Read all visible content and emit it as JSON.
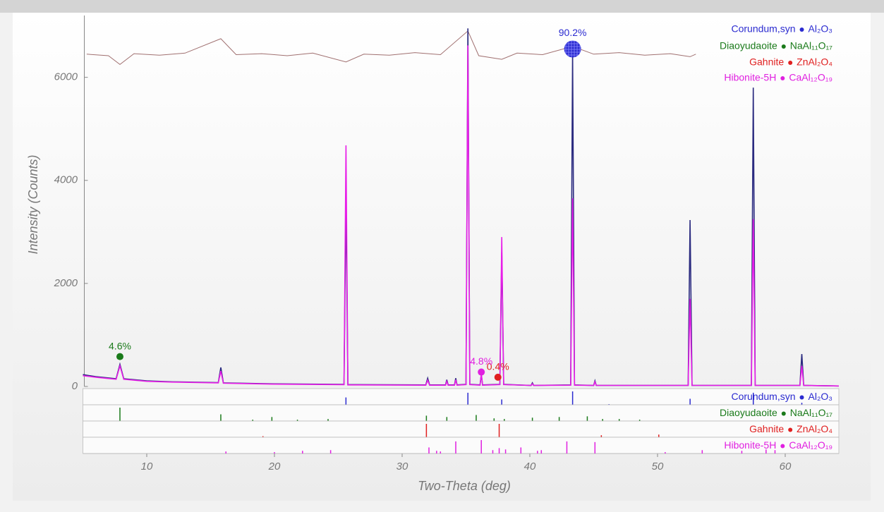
{
  "chart_data": {
    "type": "xrd",
    "xlabel": "Two-Theta (deg)",
    "ylabel": "Intensity (Counts)",
    "xlim": [
      5,
      64.2
    ],
    "ylim": [
      0,
      7200
    ],
    "xticks": [
      10,
      20,
      30,
      40,
      50,
      60
    ],
    "yticks": [
      0,
      2000,
      4000,
      6000
    ],
    "x": [
      5,
      6,
      7.6,
      7.9,
      8.2,
      10,
      12,
      15.6,
      15.8,
      16.0,
      20,
      25.45,
      25.6,
      25.75,
      31.85,
      32.0,
      32.15,
      33.4,
      33.5,
      33.6,
      34.1,
      34.2,
      34.3,
      35.0,
      35.15,
      35.3,
      36.1,
      36.2,
      36.3,
      37.65,
      37.8,
      37.95,
      40.1,
      40.2,
      40.3,
      43.2,
      43.35,
      43.5,
      45.0,
      45.1,
      45.2,
      52.4,
      52.55,
      52.7,
      57.35,
      57.5,
      57.65,
      61.15,
      61.3,
      61.45,
      64.2
    ],
    "series": [
      {
        "color": "#2b2b80",
        "values": [
          230,
          190,
          150,
          430,
          150,
          110,
          90,
          75,
          370,
          70,
          50,
          40,
          3650,
          35,
          30,
          160,
          30,
          30,
          130,
          30,
          30,
          160,
          30,
          40,
          6950,
          40,
          30,
          230,
          30,
          40,
          2600,
          40,
          20,
          70,
          20,
          30,
          6500,
          30,
          20,
          110,
          20,
          20,
          3230,
          20,
          20,
          5800,
          20,
          20,
          630,
          20,
          10
        ]
      },
      {
        "color": "#e81ee8",
        "values": [
          210,
          180,
          140,
          400,
          140,
          100,
          85,
          70,
          300,
          65,
          45,
          35,
          4680,
          30,
          25,
          120,
          25,
          25,
          100,
          25,
          25,
          130,
          25,
          35,
          6620,
          35,
          25,
          250,
          25,
          35,
          2900,
          35,
          20,
          50,
          20,
          25,
          3650,
          25,
          20,
          90,
          20,
          20,
          1700,
          20,
          20,
          3250,
          20,
          20,
          400,
          20,
          10
        ]
      }
    ],
    "difference": {
      "color": "#a07070",
      "x": [
        5.3,
        7,
        7.9,
        9,
        11,
        13,
        15.8,
        17,
        19,
        21,
        23,
        25.6,
        27,
        29,
        31,
        33,
        35.15,
        36,
        37.8,
        39,
        41,
        43.35,
        45,
        47,
        49,
        51,
        52.55,
        53
      ],
      "values": [
        6450,
        6420,
        6250,
        6460,
        6430,
        6470,
        6750,
        6440,
        6460,
        6420,
        6470,
        6300,
        6450,
        6430,
        6480,
        6440,
        6900,
        6420,
        6350,
        6470,
        6440,
        6600,
        6450,
        6480,
        6430,
        6460,
        6400,
        6450
      ]
    },
    "phases": [
      {
        "name": "Corundum,syn",
        "formula": "Al₂O₃",
        "color": "#2b2bd0",
        "fraction_label": "90.2%",
        "marker_x": 43.35,
        "marker_y": 6550,
        "sticks_x": [
          25.6,
          35.15,
          37.8,
          43.35,
          46.2,
          52.55,
          57.5,
          61.3
        ],
        "sticks_h": [
          55,
          90,
          40,
          100,
          5,
          45,
          90,
          15
        ]
      },
      {
        "name": "Diaoyudaoite",
        "formula": "NaAl₁₁O₁₇",
        "color": "#1a7a1a",
        "fraction_label": "4.6%",
        "marker_x": 7.9,
        "marker_y": 580,
        "sticks_x": [
          7.9,
          15.8,
          18.3,
          19.8,
          21.8,
          24.2,
          31.9,
          33.5,
          35.8,
          37.2,
          38.0,
          40.2,
          42.3,
          44.5,
          45.7,
          47.0,
          48.6
        ],
        "sticks_h": [
          100,
          50,
          10,
          30,
          10,
          15,
          40,
          30,
          45,
          20,
          15,
          25,
          30,
          35,
          15,
          15,
          10
        ]
      },
      {
        "name": "Gahnite",
        "formula": "ZnAl₂O₄",
        "color": "#e02020",
        "fraction_label": "0.4%",
        "marker_x": 37.5,
        "marker_y": 180,
        "sticks_x": [
          19.1,
          31.9,
          37.6,
          45.6,
          50.1
        ],
        "sticks_h": [
          8,
          100,
          100,
          15,
          20
        ]
      },
      {
        "name": "Hibonite-5H",
        "formula": "CaAl₁₂O₁₉",
        "color": "#e020e0",
        "fraction_label": "4.8%",
        "marker_x": 36.2,
        "marker_y": 280,
        "sticks_x": [
          16.2,
          20.0,
          22.2,
          24.4,
          32.1,
          32.7,
          33.0,
          34.2,
          36.2,
          37.1,
          37.6,
          38.1,
          39.3,
          40.6,
          40.9,
          42.9,
          45.1,
          50.6,
          53.5,
          56.6,
          58.5,
          59.2
        ],
        "sticks_h": [
          15,
          10,
          20,
          25,
          45,
          20,
          15,
          90,
          100,
          25,
          40,
          30,
          45,
          20,
          25,
          90,
          85,
          10,
          25,
          20,
          30,
          25
        ]
      }
    ]
  }
}
